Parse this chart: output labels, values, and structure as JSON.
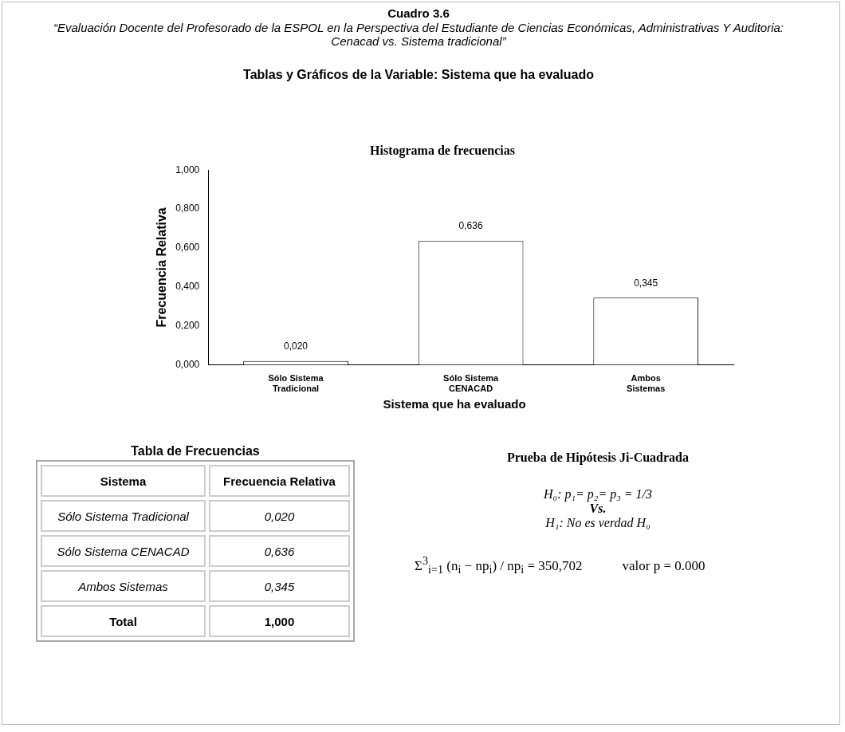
{
  "chart_data": [
    {
      "type": "bar",
      "title": "Histograma de frecuencias",
      "xlabel": "Sistema que ha evaluado",
      "ylabel": "Frecuencia Relativa",
      "annotations": [
        "Cuadro 3.6",
        "“Evaluación Docente del Profesorado de la ESPOL en la Perspectiva del Estudiante de Ciencias Económicas, Administrativas Y Auditoria: Cenacad vs. Sistema tradicional”",
        "Tablas y Gráficos de la Variable: Sistema que ha evaluado"
      ],
      "categories": [
        "Sólo Sistema Tradicional",
        "Sólo Sistema CENACAD",
        "Ambos Sistemas"
      ],
      "values": [
        0.02,
        0.636,
        0.345
      ],
      "value_labels": [
        "0,020",
        "0,636",
        "0,345"
      ],
      "color": "#ffffff",
      "ylim": [
        0,
        1
      ],
      "yticks": [
        {
          "value": 0,
          "label": "0,000"
        },
        {
          "value": 0.2,
          "label": "0,200"
        },
        {
          "value": 0.4,
          "label": "0,400"
        },
        {
          "value": 0.6,
          "label": "0,600"
        },
        {
          "value": 0.8,
          "label": "0,800"
        },
        {
          "value": 1,
          "label": "1,000"
        }
      ],
      "grid": false,
      "legend": false
    },
    {
      "type": "other",
      "title": "Tabla de Frecuencias",
      "annotations": [
        "Sistema",
        "Frecuencia Relativa",
        "Sólo Sistema Tradicional",
        "0,020",
        "Sólo Sistema CENACAD",
        "0,636",
        "Ambos Sistemas",
        "0,345",
        "Total",
        "1,000"
      ]
    },
    {
      "type": "other",
      "title": "Prueba de Hipótesis Ji-Cuadrada",
      "annotations": [
        "H₀: p₁= p₂= p₃ = 1/3",
        "Vs.",
        "H₁: No es verdad H₀",
        "Σ$^{3}$$_{i=1}$ (n$_{i}$ − np$_{i}$) / np$_{i}$ = 350,702",
        "valor p = 0.000"
      ]
    }
  ]
}
